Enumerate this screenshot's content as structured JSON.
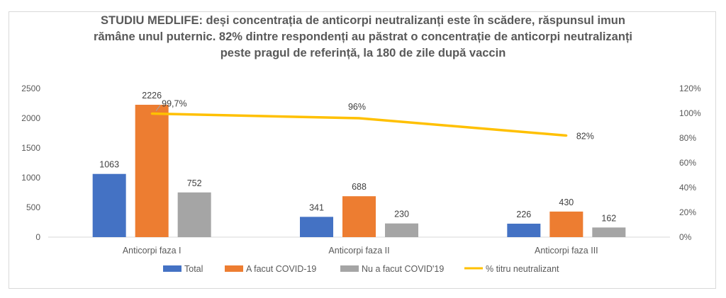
{
  "chart_data": {
    "type": "bar",
    "title_lines": [
      "STUDIU MEDLIFE: deși concentrația de anticorpi neutralizanți este în scădere, răspunsul imun",
      "rămâne unul puternic. 82% dintre respondenți au păstrat o concentrație de anticorpi neutralizanți",
      "peste pragul de referință, la 180 de zile după vaccin"
    ],
    "categories": [
      "Anticorpi faza I",
      "Anticorpi faza II",
      "Anticorpi faza III"
    ],
    "series": [
      {
        "name": "Total",
        "type": "bar",
        "axis": "left",
        "color": "#4472c4",
        "values": [
          1063,
          341,
          226
        ],
        "labels": [
          "1063",
          "341",
          "226"
        ]
      },
      {
        "name": "A facut COVID-19",
        "type": "bar",
        "axis": "left",
        "color": "#ed7d31",
        "values": [
          2226,
          688,
          430
        ],
        "labels": [
          "2226",
          "688",
          "430"
        ]
      },
      {
        "name": "Nu a facut COVID'19",
        "type": "bar",
        "axis": "left",
        "color": "#a5a5a5",
        "values": [
          752,
          230,
          162
        ],
        "labels": [
          "752",
          "230",
          "162"
        ]
      },
      {
        "name": "% titru neutralizant",
        "type": "line",
        "axis": "right",
        "color": "#ffc000",
        "values": [
          99.7,
          96,
          82
        ],
        "labels": [
          "99,7%",
          "96%",
          "82%"
        ]
      }
    ],
    "y_left": {
      "min": 0,
      "max": 2500,
      "ticks": [
        "0",
        "500",
        "1000",
        "1500",
        "2000",
        "2500"
      ]
    },
    "y_right": {
      "min": 0,
      "max": 120,
      "ticks": [
        "0%",
        "20%",
        "40%",
        "60%",
        "80%",
        "100%",
        "120%"
      ]
    },
    "legend": "bottom",
    "grid": false
  }
}
